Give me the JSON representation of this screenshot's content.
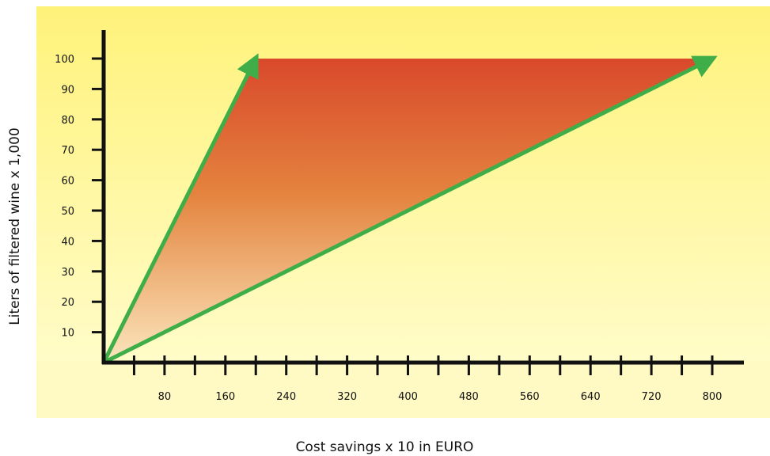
{
  "chart_data": {
    "type": "area",
    "title": "",
    "xlabel": "Cost savings x 10 in EURO",
    "ylabel": "Liters of filtered wine x 1,000",
    "xlim": [
      0,
      840
    ],
    "ylim": [
      0,
      110
    ],
    "x_ticks": [
      40,
      80,
      120,
      160,
      200,
      240,
      280,
      320,
      360,
      400,
      440,
      480,
      520,
      560,
      600,
      640,
      680,
      720,
      760,
      800
    ],
    "x_tick_labels": [
      {
        "value": 80,
        "label": "80"
      },
      {
        "value": 160,
        "label": "160"
      },
      {
        "value": 240,
        "label": "240"
      },
      {
        "value": 320,
        "label": "320"
      },
      {
        "value": 400,
        "label": "400"
      },
      {
        "value": 480,
        "label": "480"
      },
      {
        "value": 560,
        "label": "560"
      },
      {
        "value": 640,
        "label": "640"
      },
      {
        "value": 720,
        "label": "720"
      },
      {
        "value": 800,
        "label": "800"
      }
    ],
    "y_tick_labels": [
      {
        "value": 10,
        "label": "10"
      },
      {
        "value": 20,
        "label": "20"
      },
      {
        "value": 30,
        "label": "30"
      },
      {
        "value": 40,
        "label": "40"
      },
      {
        "value": 50,
        "label": "50"
      },
      {
        "value": 60,
        "label": "60"
      },
      {
        "value": 70,
        "label": "70"
      },
      {
        "value": 80,
        "label": "80"
      },
      {
        "value": 90,
        "label": "90"
      },
      {
        "value": 100,
        "label": "100"
      }
    ],
    "series": [
      {
        "points": [
          [
            0,
            0
          ],
          [
            200,
            100
          ]
        ]
      },
      {
        "points": [
          [
            0,
            0
          ],
          [
            800,
            100
          ]
        ]
      }
    ],
    "fill_region": [
      [
        0,
        0
      ],
      [
        200,
        100
      ],
      [
        800,
        100
      ]
    ],
    "grid": false,
    "colors": {
      "arrow": "#3fae49",
      "fill_top": "#d9492b",
      "fill_bottom": "#fbe3b8",
      "background_top": "#fff27a",
      "background_bottom": "#fff9c4",
      "axis": "#111111"
    }
  }
}
